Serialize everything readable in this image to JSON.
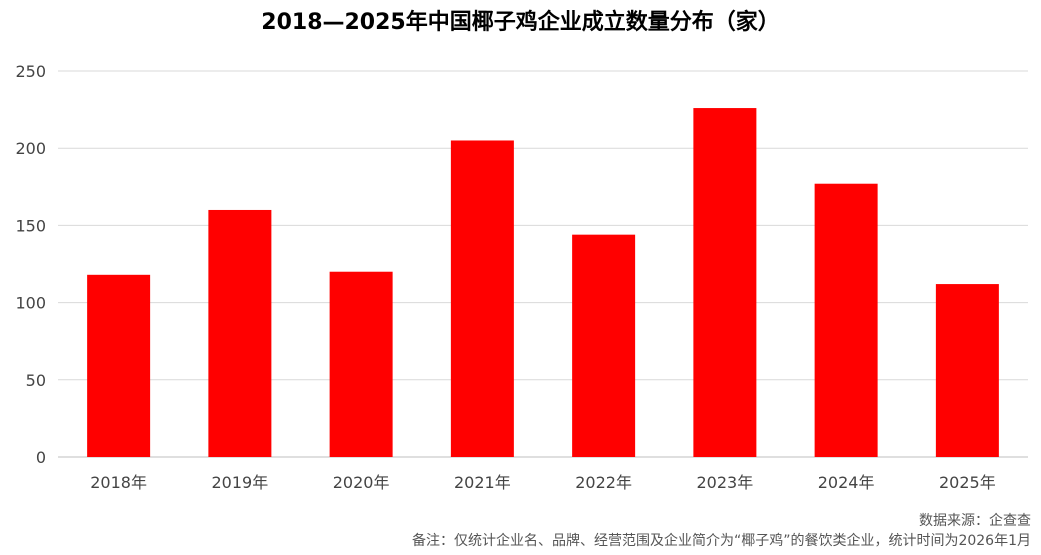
{
  "chart_data": {
    "type": "bar",
    "title": "2018—2025年中国椰子鸡企业成立数量分布（家）",
    "categories": [
      "2018年",
      "2019年",
      "2020年",
      "2021年",
      "2022年",
      "2023年",
      "2024年",
      "2025年"
    ],
    "values": [
      118,
      160,
      120,
      205,
      144,
      226,
      177,
      112
    ],
    "ylim": [
      0,
      250
    ],
    "yticks": [
      0,
      50,
      100,
      150,
      200,
      250
    ],
    "grid": true,
    "bar_color": "#ff0000",
    "grid_color": "#d9d9d9"
  },
  "footer": {
    "source": "数据来源：企查查",
    "note": "备注：仅统计企业名、品牌、经营范围及企业简介为“椰子鸡”的餐饮类企业，统计时间为2026年1月"
  }
}
